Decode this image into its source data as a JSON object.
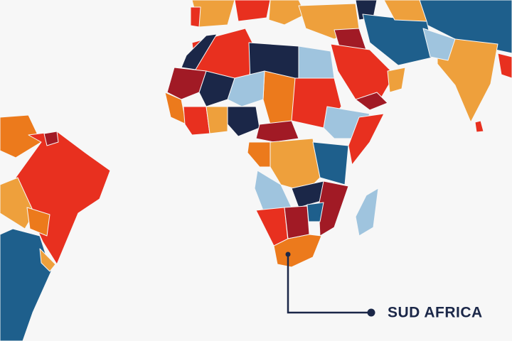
{
  "annotation": {
    "label": "SUD AFRICA"
  }
}
